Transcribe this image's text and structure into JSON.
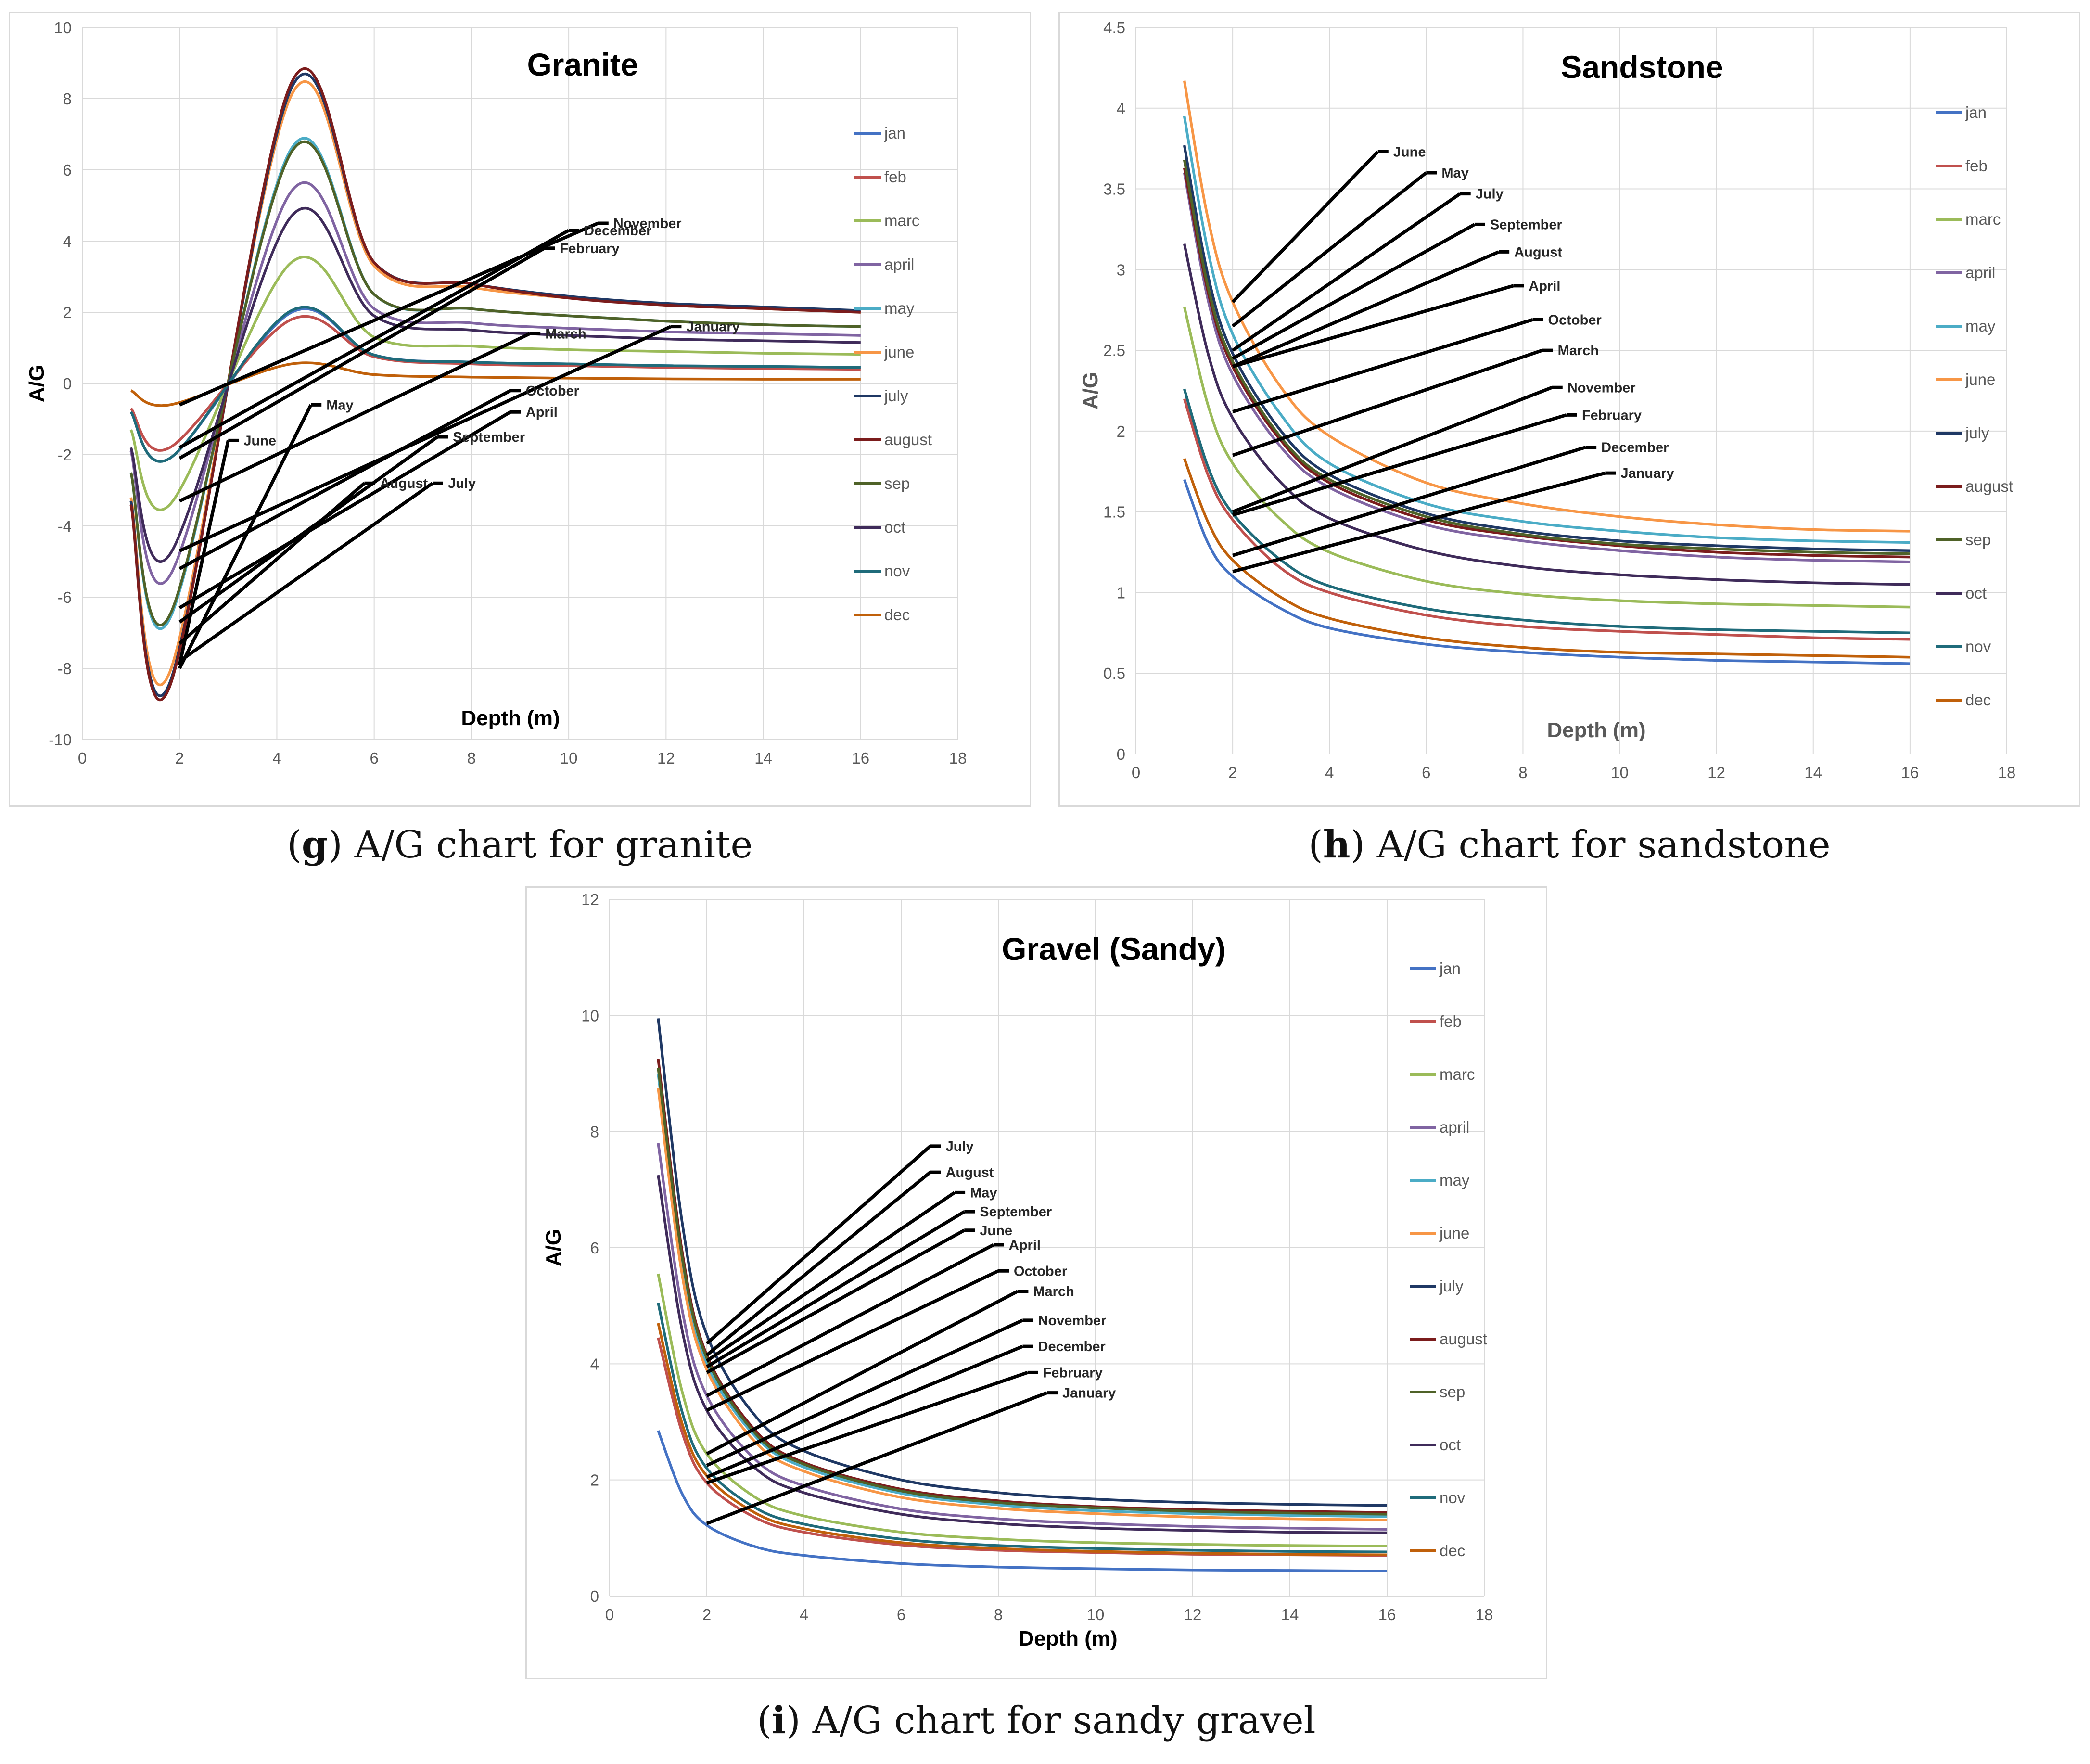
{
  "figure": {
    "captions": [
      {
        "letter": "g",
        "text": "A/G chart for granite"
      },
      {
        "letter": "h",
        "text": "A/G chart for sandstone"
      },
      {
        "letter": "i",
        "text": "A/G chart for sandy gravel"
      }
    ]
  },
  "colors": {
    "jan": "#4472c4",
    "feb": "#c0504d",
    "marc": "#9bbb59",
    "april": "#8064a2",
    "may": "#4bacc6",
    "june": "#f79646",
    "july": "#1f3864",
    "august": "#7b1c1c",
    "sep": "#4f6228",
    "oct": "#3f2b5a",
    "nov": "#1f6b7a",
    "dec": "#c0600a",
    "grid": "#d9d9d9",
    "annotation": "#000000",
    "text": "#595959"
  },
  "chart_data": [
    {
      "id": "granite",
      "type": "line",
      "title": "Granite",
      "xlabel": "Depth (m)",
      "ylabel": "A/G",
      "xlim": [
        0,
        18
      ],
      "ylim": [
        -10,
        10
      ],
      "xticks": [
        0,
        2,
        4,
        6,
        8,
        10,
        12,
        14,
        16,
        18
      ],
      "yticks": [
        -10,
        -8,
        -6,
        -4,
        -2,
        0,
        2,
        4,
        6,
        8,
        10
      ],
      "grid": true,
      "legend": "right",
      "x": [
        1,
        1.8,
        4.3,
        6,
        8,
        10,
        12,
        14,
        16
      ],
      "series": [
        {
          "name": "jan",
          "values": [
            -0.8,
            -2.1,
            2.0,
            0.8,
            0.6,
            0.55,
            0.5,
            0.48,
            0.45
          ]
        },
        {
          "name": "feb",
          "values": [
            -0.7,
            -1.8,
            1.8,
            0.75,
            0.55,
            0.5,
            0.45,
            0.42,
            0.4
          ]
        },
        {
          "name": "marc",
          "values": [
            -1.3,
            -3.4,
            3.4,
            1.3,
            1.05,
            0.95,
            0.9,
            0.85,
            0.82
          ]
        },
        {
          "name": "april",
          "values": [
            -1.9,
            -5.4,
            5.4,
            2.1,
            1.7,
            1.55,
            1.45,
            1.4,
            1.35
          ]
        },
        {
          "name": "may",
          "values": [
            -2.5,
            -6.6,
            6.6,
            2.5,
            2.1,
            1.9,
            1.75,
            1.65,
            1.6
          ]
        },
        {
          "name": "june",
          "values": [
            -3.2,
            -8.1,
            8.1,
            3.3,
            2.7,
            2.4,
            2.2,
            2.1,
            2.0
          ]
        },
        {
          "name": "july",
          "values": [
            -3.3,
            -8.4,
            8.3,
            3.4,
            2.8,
            2.45,
            2.25,
            2.15,
            2.05
          ]
        },
        {
          "name": "august",
          "values": [
            -3.4,
            -8.5,
            8.45,
            3.4,
            2.8,
            2.4,
            2.2,
            2.1,
            2.0
          ]
        },
        {
          "name": "sep",
          "values": [
            -2.5,
            -6.5,
            6.5,
            2.5,
            2.1,
            1.9,
            1.75,
            1.65,
            1.6
          ]
        },
        {
          "name": "oct",
          "values": [
            -1.8,
            -4.8,
            4.7,
            1.9,
            1.5,
            1.35,
            1.25,
            1.2,
            1.15
          ]
        },
        {
          "name": "nov",
          "values": [
            -0.8,
            -2.1,
            2.05,
            0.8,
            0.6,
            0.55,
            0.5,
            0.48,
            0.45
          ]
        },
        {
          "name": "dec",
          "values": [
            -0.2,
            -0.6,
            0.55,
            0.25,
            0.18,
            0.15,
            0.13,
            0.12,
            0.12
          ]
        }
      ],
      "annotations": [
        {
          "text": "November",
          "from": [
            2.0,
            -0.6
          ],
          "to": [
            10.6,
            4.5
          ]
        },
        {
          "text": "December",
          "from": [
            2.0,
            -1.8
          ],
          "to": [
            10.0,
            4.3
          ]
        },
        {
          "text": "February",
          "from": [
            2.0,
            -2.1
          ],
          "to": [
            9.5,
            3.8
          ]
        },
        {
          "text": "March",
          "from": [
            2.0,
            -3.3
          ],
          "to": [
            9.2,
            1.4
          ]
        },
        {
          "text": "January",
          "from": [
            2.0,
            -4.7
          ],
          "to": [
            12.1,
            1.6
          ]
        },
        {
          "text": "June",
          "from": [
            2.0,
            -7.9
          ],
          "to": [
            3.0,
            -1.6
          ]
        },
        {
          "text": "May",
          "from": [
            2.0,
            -8.0
          ],
          "to": [
            4.7,
            -0.6
          ]
        },
        {
          "text": "October",
          "from": [
            2.0,
            -5.2
          ],
          "to": [
            8.8,
            -0.2
          ]
        },
        {
          "text": "April",
          "from": [
            2.0,
            -6.3
          ],
          "to": [
            8.8,
            -0.8
          ]
        },
        {
          "text": "September",
          "from": [
            2.0,
            -6.7
          ],
          "to": [
            7.3,
            -1.5
          ]
        },
        {
          "text": "August",
          "from": [
            2.0,
            -7.3
          ],
          "to": [
            5.8,
            -2.8
          ]
        },
        {
          "text": "July",
          "from": [
            2.0,
            -7.8
          ],
          "to": [
            7.2,
            -2.8
          ]
        }
      ]
    },
    {
      "id": "sandstone",
      "type": "line",
      "title": "Sandstone",
      "xlabel": "Depth (m)",
      "ylabel": "A/G",
      "xlim": [
        0,
        18
      ],
      "ylim": [
        0,
        4.5
      ],
      "xticks": [
        0,
        2,
        4,
        6,
        8,
        10,
        12,
        14,
        16,
        18
      ],
      "yticks": [
        0,
        0.5,
        1,
        1.5,
        2,
        2.5,
        3,
        3.5,
        4,
        4.5
      ],
      "grid": true,
      "legend": "right",
      "x": [
        1,
        1.5,
        2,
        3,
        4,
        6,
        8,
        10,
        12,
        14,
        16
      ],
      "series": [
        {
          "name": "jan",
          "values": [
            1.7,
            1.3,
            1.1,
            0.9,
            0.78,
            0.68,
            0.63,
            0.6,
            0.58,
            0.57,
            0.56
          ]
        },
        {
          "name": "feb",
          "values": [
            2.2,
            1.72,
            1.45,
            1.15,
            1.0,
            0.86,
            0.79,
            0.76,
            0.74,
            0.72,
            0.71
          ]
        },
        {
          "name": "marc",
          "values": [
            2.77,
            2.15,
            1.8,
            1.45,
            1.25,
            1.07,
            0.99,
            0.95,
            0.93,
            0.92,
            0.91
          ]
        },
        {
          "name": "april",
          "values": [
            3.6,
            2.8,
            2.35,
            1.9,
            1.65,
            1.42,
            1.32,
            1.26,
            1.22,
            1.2,
            1.19
          ]
        },
        {
          "name": "may",
          "values": [
            3.95,
            3.1,
            2.6,
            2.1,
            1.8,
            1.55,
            1.44,
            1.38,
            1.34,
            1.32,
            1.31
          ]
        },
        {
          "name": "june",
          "values": [
            4.17,
            3.3,
            2.8,
            2.27,
            1.97,
            1.68,
            1.55,
            1.47,
            1.42,
            1.39,
            1.38
          ]
        },
        {
          "name": "july",
          "values": [
            3.77,
            2.95,
            2.48,
            2.0,
            1.73,
            1.49,
            1.38,
            1.32,
            1.29,
            1.27,
            1.26
          ]
        },
        {
          "name": "august",
          "values": [
            3.63,
            2.85,
            2.4,
            1.94,
            1.68,
            1.45,
            1.35,
            1.29,
            1.25,
            1.23,
            1.22
          ]
        },
        {
          "name": "sep",
          "values": [
            3.68,
            2.88,
            2.43,
            1.96,
            1.7,
            1.47,
            1.36,
            1.3,
            1.27,
            1.25,
            1.24
          ]
        },
        {
          "name": "oct",
          "values": [
            3.16,
            2.47,
            2.08,
            1.68,
            1.46,
            1.26,
            1.16,
            1.11,
            1.08,
            1.06,
            1.05
          ]
        },
        {
          "name": "nov",
          "values": [
            2.26,
            1.77,
            1.49,
            1.2,
            1.04,
            0.9,
            0.83,
            0.79,
            0.77,
            0.76,
            0.75
          ]
        },
        {
          "name": "dec",
          "values": [
            1.83,
            1.43,
            1.2,
            0.97,
            0.84,
            0.72,
            0.66,
            0.63,
            0.62,
            0.61,
            0.6
          ]
        }
      ],
      "annotations": [
        {
          "text": "June",
          "from": [
            2.0,
            2.8
          ],
          "to": [
            5.0,
            3.73
          ]
        },
        {
          "text": "May",
          "from": [
            2.0,
            2.65
          ],
          "to": [
            6.0,
            3.6
          ]
        },
        {
          "text": "July",
          "from": [
            2.0,
            2.5
          ],
          "to": [
            6.7,
            3.47
          ]
        },
        {
          "text": "September",
          "from": [
            2.0,
            2.45
          ],
          "to": [
            7.0,
            3.28
          ]
        },
        {
          "text": "August",
          "from": [
            2.0,
            2.4
          ],
          "to": [
            7.5,
            3.11
          ]
        },
        {
          "text": "April",
          "from": [
            2.0,
            2.4
          ],
          "to": [
            7.8,
            2.9
          ]
        },
        {
          "text": "October",
          "from": [
            2.0,
            2.12
          ],
          "to": [
            8.2,
            2.69
          ]
        },
        {
          "text": "March",
          "from": [
            2.0,
            1.85
          ],
          "to": [
            8.4,
            2.5
          ]
        },
        {
          "text": "November",
          "from": [
            2.0,
            1.5
          ],
          "to": [
            8.6,
            2.27
          ]
        },
        {
          "text": "February",
          "from": [
            2.0,
            1.48
          ],
          "to": [
            8.9,
            2.1
          ]
        },
        {
          "text": "December",
          "from": [
            2.0,
            1.23
          ],
          "to": [
            9.3,
            1.9
          ]
        },
        {
          "text": "January",
          "from": [
            2.0,
            1.13
          ],
          "to": [
            9.7,
            1.74
          ]
        }
      ]
    },
    {
      "id": "sandy-gravel",
      "type": "line",
      "title": "Gravel (Sandy)",
      "xlabel": "Depth (m)",
      "ylabel": "A/G",
      "xlim": [
        0,
        18
      ],
      "ylim": [
        0,
        12
      ],
      "xticks": [
        0,
        2,
        4,
        6,
        8,
        10,
        12,
        14,
        16,
        18
      ],
      "yticks": [
        0,
        2,
        4,
        6,
        8,
        10,
        12
      ],
      "grid": true,
      "legend": "right",
      "x": [
        1,
        1.5,
        2,
        3,
        4,
        6,
        8,
        10,
        12,
        14,
        16
      ],
      "series": [
        {
          "name": "jan",
          "values": [
            2.85,
            1.75,
            1.22,
            0.85,
            0.7,
            0.56,
            0.5,
            0.47,
            0.45,
            0.44,
            0.43
          ]
        },
        {
          "name": "feb",
          "values": [
            4.45,
            2.8,
            1.95,
            1.35,
            1.1,
            0.88,
            0.79,
            0.75,
            0.72,
            0.71,
            0.7
          ]
        },
        {
          "name": "marc",
          "values": [
            5.55,
            3.5,
            2.45,
            1.7,
            1.38,
            1.1,
            0.98,
            0.92,
            0.89,
            0.87,
            0.86
          ]
        },
        {
          "name": "april",
          "values": [
            7.8,
            4.9,
            3.45,
            2.35,
            1.9,
            1.5,
            1.33,
            1.25,
            1.2,
            1.17,
            1.15
          ]
        },
        {
          "name": "may",
          "values": [
            9.0,
            5.7,
            4.0,
            2.75,
            2.22,
            1.77,
            1.57,
            1.47,
            1.42,
            1.39,
            1.37
          ]
        },
        {
          "name": "june",
          "values": [
            8.75,
            5.5,
            3.9,
            2.65,
            2.15,
            1.7,
            1.51,
            1.42,
            1.36,
            1.33,
            1.31
          ]
        },
        {
          "name": "july",
          "values": [
            9.95,
            6.4,
            4.5,
            3.1,
            2.5,
            2.0,
            1.78,
            1.67,
            1.61,
            1.58,
            1.56
          ]
        },
        {
          "name": "august",
          "values": [
            9.25,
            5.9,
            4.15,
            2.85,
            2.3,
            1.84,
            1.64,
            1.54,
            1.49,
            1.46,
            1.44
          ]
        },
        {
          "name": "sep",
          "values": [
            9.1,
            5.8,
            4.1,
            2.8,
            2.27,
            1.81,
            1.61,
            1.52,
            1.46,
            1.43,
            1.41
          ]
        },
        {
          "name": "oct",
          "values": [
            7.25,
            4.55,
            3.2,
            2.2,
            1.78,
            1.41,
            1.25,
            1.17,
            1.13,
            1.1,
            1.09
          ]
        },
        {
          "name": "nov",
          "values": [
            5.05,
            3.15,
            2.2,
            1.52,
            1.24,
            0.98,
            0.87,
            0.82,
            0.79,
            0.77,
            0.76
          ]
        },
        {
          "name": "dec",
          "values": [
            4.7,
            2.95,
            2.07,
            1.43,
            1.16,
            0.92,
            0.82,
            0.77,
            0.74,
            0.72,
            0.71
          ]
        }
      ],
      "annotations": [
        {
          "text": "July",
          "from": [
            2.0,
            4.35
          ],
          "to": [
            6.6,
            7.75
          ]
        },
        {
          "text": "August",
          "from": [
            2.0,
            4.15
          ],
          "to": [
            6.6,
            7.3
          ]
        },
        {
          "text": "May",
          "from": [
            2.0,
            4.05
          ],
          "to": [
            7.1,
            6.95
          ]
        },
        {
          "text": "September",
          "from": [
            2.0,
            3.95
          ],
          "to": [
            7.3,
            6.62
          ]
        },
        {
          "text": "June",
          "from": [
            2.0,
            3.85
          ],
          "to": [
            7.3,
            6.3
          ]
        },
        {
          "text": "April",
          "from": [
            2.0,
            3.45
          ],
          "to": [
            7.9,
            6.05
          ]
        },
        {
          "text": "October",
          "from": [
            2.0,
            3.2
          ],
          "to": [
            8.0,
            5.6
          ]
        },
        {
          "text": "March",
          "from": [
            2.0,
            2.45
          ],
          "to": [
            8.4,
            5.25
          ]
        },
        {
          "text": "November",
          "from": [
            2.0,
            2.25
          ],
          "to": [
            8.5,
            4.75
          ]
        },
        {
          "text": "December",
          "from": [
            2.0,
            2.05
          ],
          "to": [
            8.5,
            4.3
          ]
        },
        {
          "text": "February",
          "from": [
            2.0,
            1.95
          ],
          "to": [
            8.6,
            3.85
          ]
        },
        {
          "text": "January",
          "from": [
            2.0,
            1.25
          ],
          "to": [
            9.0,
            3.5
          ]
        }
      ]
    }
  ]
}
